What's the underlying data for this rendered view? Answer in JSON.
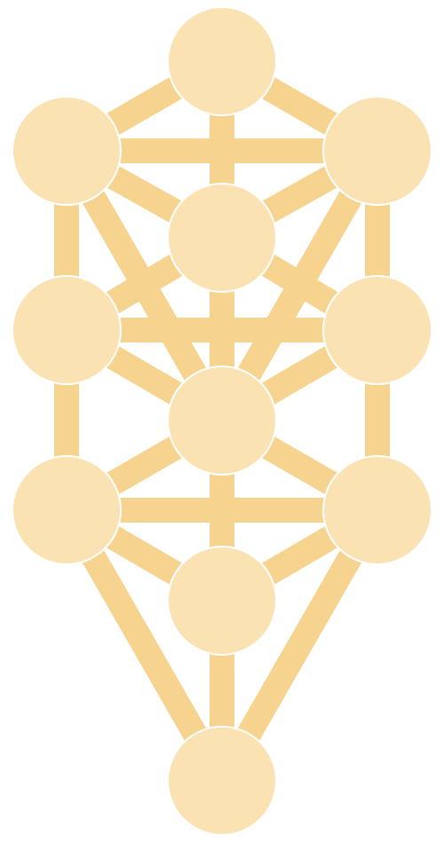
{
  "colors": {
    "background": "#ffffff",
    "node_fill": "#fbe2b2",
    "path_fill": "#f6d38e",
    "node_outline": "#ffffff"
  },
  "diagram": {
    "nodes": [
      {
        "id": "n1"
      },
      {
        "id": "n2"
      },
      {
        "id": "n3"
      },
      {
        "id": "n4"
      },
      {
        "id": "n5"
      },
      {
        "id": "n6"
      },
      {
        "id": "n7"
      },
      {
        "id": "n8"
      },
      {
        "id": "n9"
      },
      {
        "id": "n10"
      },
      {
        "id": "n11"
      }
    ],
    "paths": [
      {
        "from": "n1",
        "to": "n2"
      },
      {
        "from": "n1",
        "to": "n3"
      },
      {
        "from": "n1",
        "to": "n4"
      },
      {
        "from": "n2",
        "to": "n3"
      },
      {
        "from": "n2",
        "to": "n4"
      },
      {
        "from": "n3",
        "to": "n4"
      },
      {
        "from": "n2",
        "to": "n5"
      },
      {
        "from": "n3",
        "to": "n6"
      },
      {
        "from": "n2",
        "to": "n7"
      },
      {
        "from": "n3",
        "to": "n7"
      },
      {
        "from": "n4",
        "to": "n5"
      },
      {
        "from": "n4",
        "to": "n6"
      },
      {
        "from": "n4",
        "to": "n7"
      },
      {
        "from": "n5",
        "to": "n6"
      },
      {
        "from": "n5",
        "to": "n7"
      },
      {
        "from": "n6",
        "to": "n7"
      },
      {
        "from": "n5",
        "to": "n8"
      },
      {
        "from": "n6",
        "to": "n9"
      },
      {
        "from": "n7",
        "to": "n8"
      },
      {
        "from": "n7",
        "to": "n9"
      },
      {
        "from": "n7",
        "to": "n10"
      },
      {
        "from": "n8",
        "to": "n9"
      },
      {
        "from": "n8",
        "to": "n10"
      },
      {
        "from": "n9",
        "to": "n10"
      },
      {
        "from": "n8",
        "to": "n11"
      },
      {
        "from": "n9",
        "to": "n11"
      },
      {
        "from": "n10",
        "to": "n11"
      }
    ]
  }
}
